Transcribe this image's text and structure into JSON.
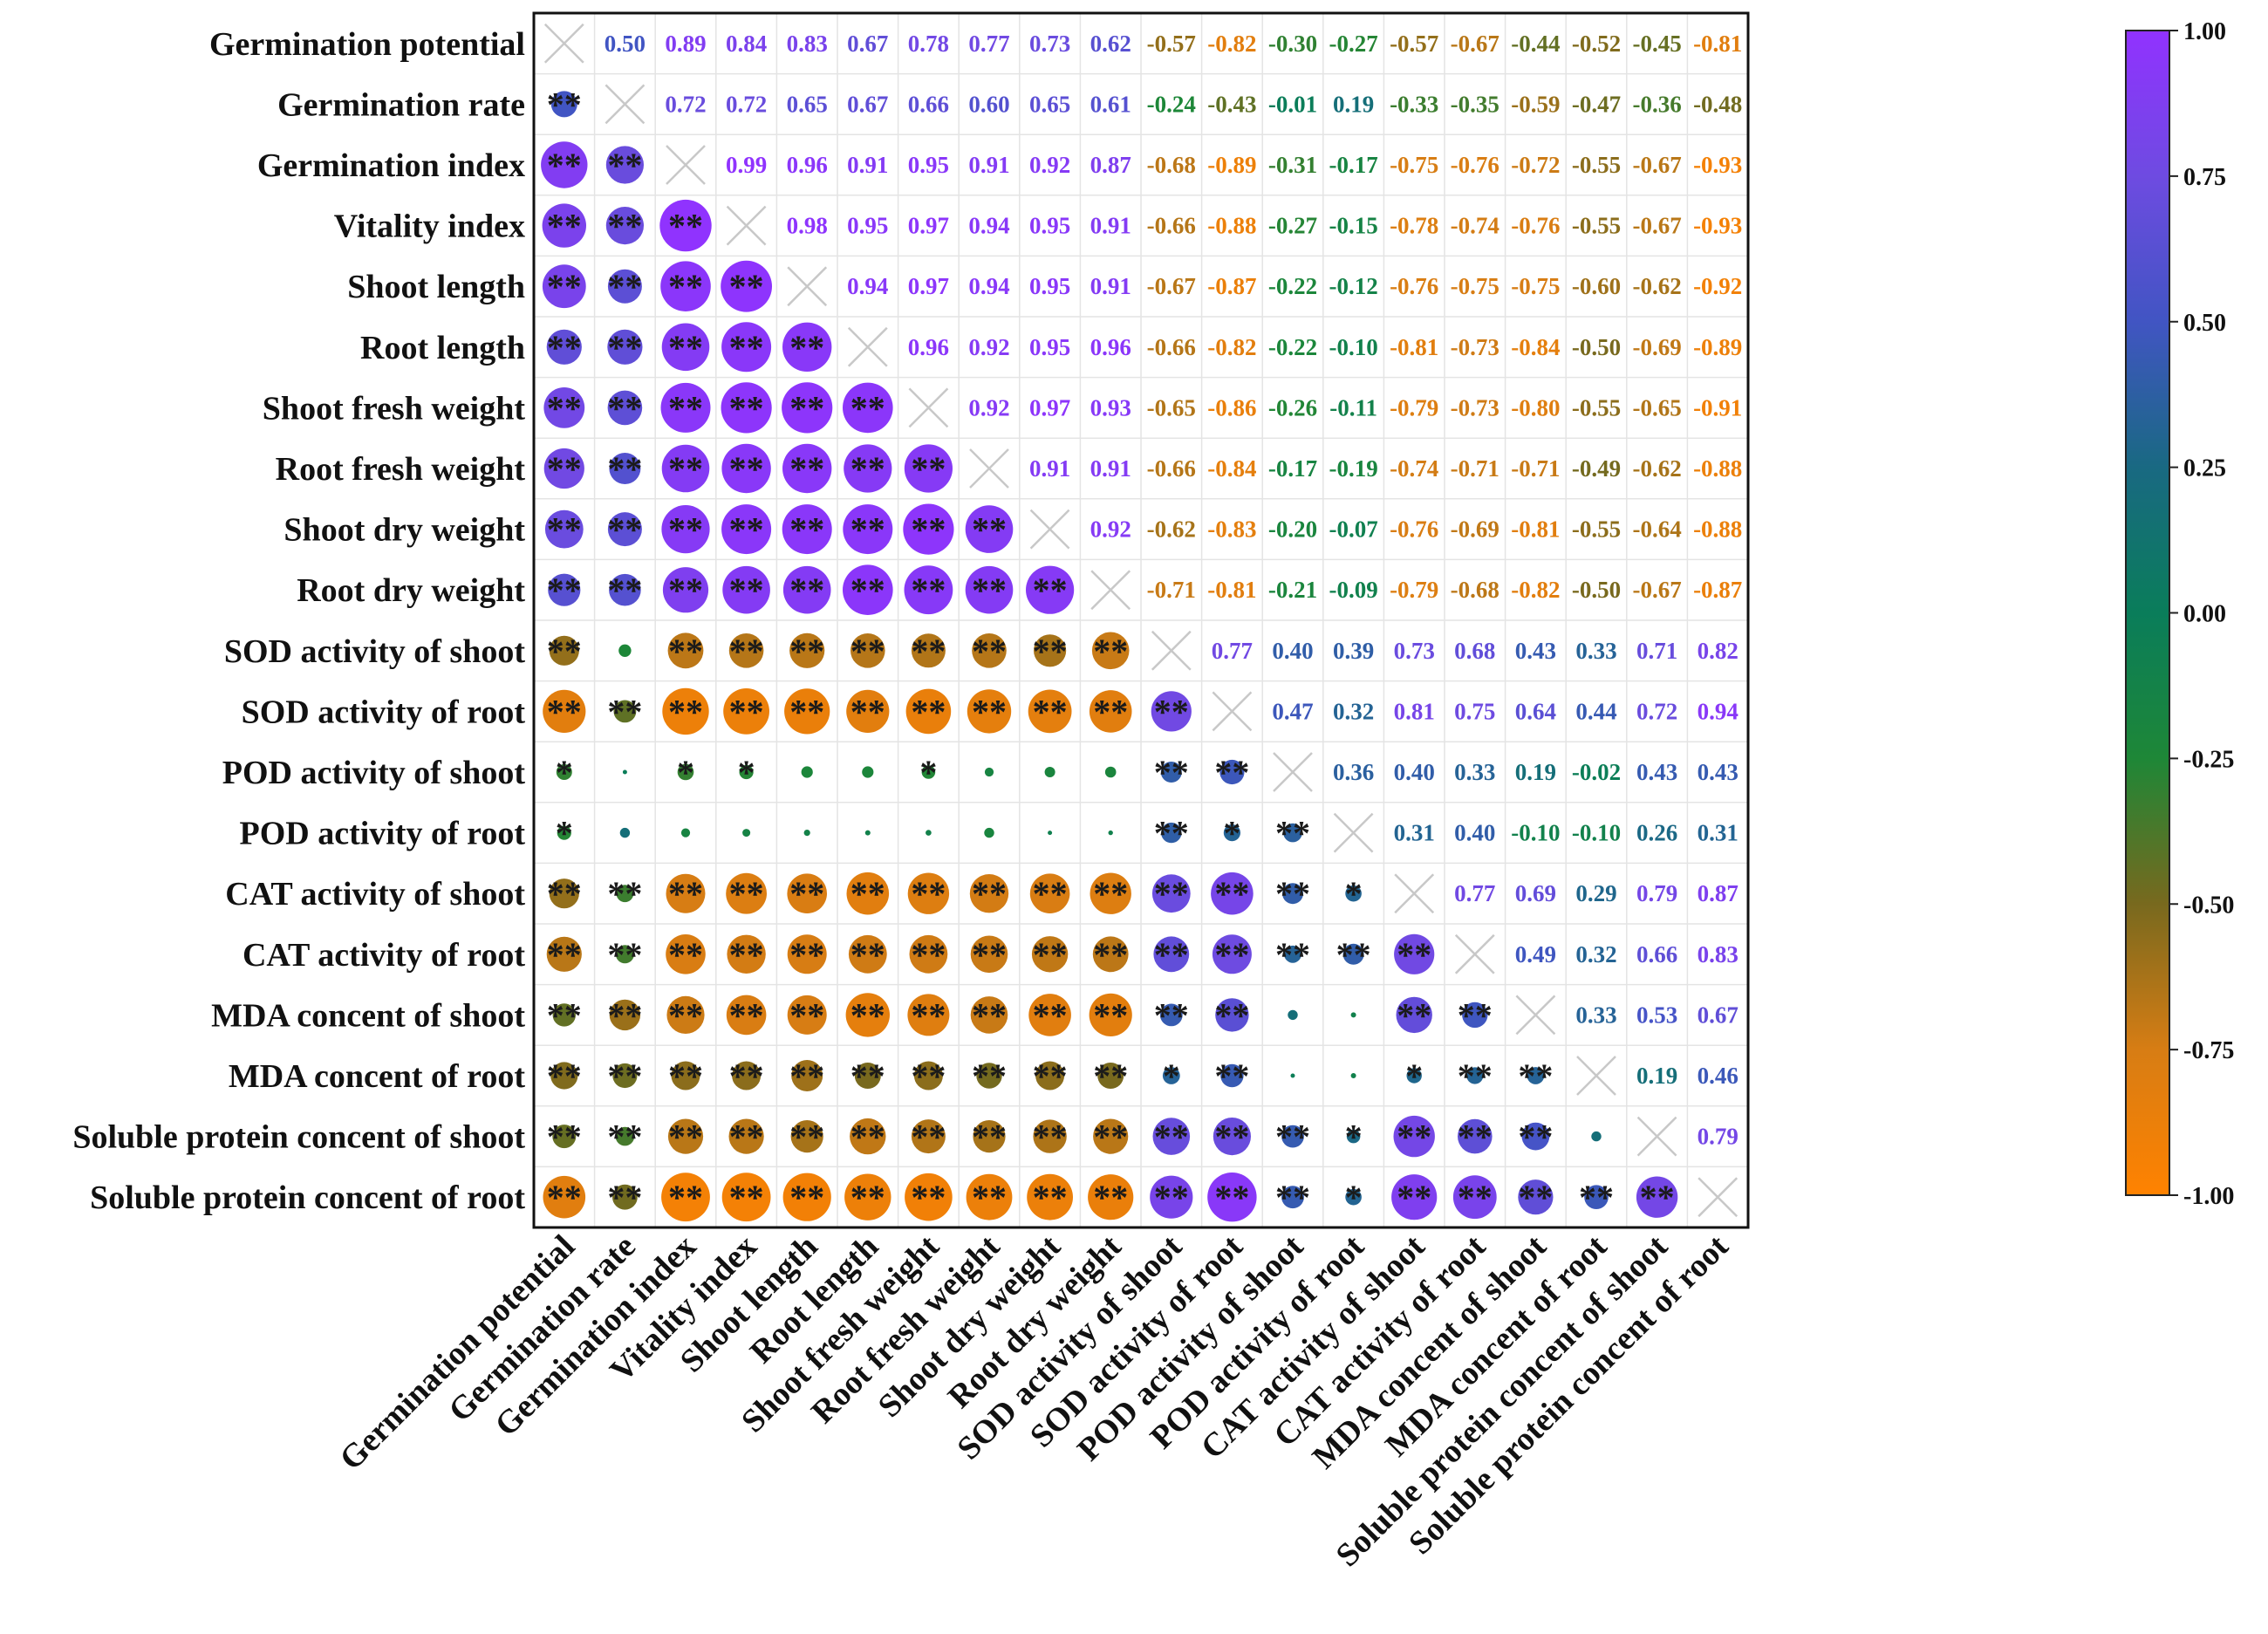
{
  "chart_data": {
    "type": "heatmap",
    "subtype": "correlation-matrix",
    "title": "",
    "variables": [
      "Germination potential",
      "Germination rate",
      "Germination index",
      "Vitality index",
      "Shoot length",
      "Root length",
      "Shoot fresh weight",
      "Root fresh weight",
      "Shoot dry weight",
      "Root dry weight",
      "SOD activity of shoot",
      "SOD activity of root",
      "POD activity of shoot",
      "POD activity of root",
      "CAT activity of shoot",
      "CAT activity of root",
      "MDA concent of shoot",
      "MDA concent of root",
      "Soluble protein concent of shoot",
      "Soluble protein concent of root"
    ],
    "upper_triangle": [
      [
        "0.50",
        "0.89",
        "0.84",
        "0.83",
        "0.67",
        "0.78",
        "0.77",
        "0.73",
        "0.62",
        "-0.57",
        "-0.82",
        "-0.30",
        "-0.27",
        "-0.57",
        "-0.67",
        "-0.44",
        "-0.52",
        "-0.45",
        "-0.81"
      ],
      [
        "0.72",
        "0.72",
        "0.65",
        "0.67",
        "0.66",
        "0.60",
        "0.65",
        "0.61",
        "-0.24",
        "-0.43",
        "-0.01",
        "0.19",
        "-0.33",
        "-0.35",
        "-0.59",
        "-0.47",
        "-0.36",
        "-0.48"
      ],
      [
        "0.99",
        "0.96",
        "0.91",
        "0.95",
        "0.91",
        "0.92",
        "0.87",
        "-0.68",
        "-0.89",
        "-0.31",
        "-0.17",
        "-0.75",
        "-0.76",
        "-0.72",
        "-0.55",
        "-0.67",
        "-0.93"
      ],
      [
        "0.98",
        "0.95",
        "0.97",
        "0.94",
        "0.95",
        "0.91",
        "-0.66",
        "-0.88",
        "-0.27",
        "-0.15",
        "-0.78",
        "-0.74",
        "-0.76",
        "-0.55",
        "-0.67",
        "-0.93"
      ],
      [
        "0.94",
        "0.97",
        "0.94",
        "0.95",
        "0.91",
        "-0.67",
        "-0.87",
        "-0.22",
        "-0.12",
        "-0.76",
        "-0.75",
        "-0.75",
        "-0.60",
        "-0.62",
        "-0.92"
      ],
      [
        "0.96",
        "0.92",
        "0.95",
        "0.96",
        "-0.66",
        "-0.82",
        "-0.22",
        "-0.10",
        "-0.81",
        "-0.73",
        "-0.84",
        "-0.50",
        "-0.69",
        "-0.89"
      ],
      [
        "0.92",
        "0.97",
        "0.93",
        "-0.65",
        "-0.86",
        "-0.26",
        "-0.11",
        "-0.79",
        "-0.73",
        "-0.80",
        "-0.55",
        "-0.65",
        "-0.91"
      ],
      [
        "0.91",
        "0.91",
        "-0.66",
        "-0.84",
        "-0.17",
        "-0.19",
        "-0.74",
        "-0.71",
        "-0.71",
        "-0.49",
        "-0.62",
        "-0.88"
      ],
      [
        "0.92",
        "-0.62",
        "-0.83",
        "-0.20",
        "-0.07",
        "-0.76",
        "-0.69",
        "-0.81",
        "-0.55",
        "-0.64",
        "-0.88"
      ],
      [
        "-0.71",
        "-0.81",
        "-0.21",
        "-0.09",
        "-0.79",
        "-0.68",
        "-0.82",
        "-0.50",
        "-0.67",
        "-0.87"
      ],
      [
        "0.77",
        "0.40",
        "0.39",
        "0.73",
        "0.68",
        "0.43",
        "0.33",
        "0.71",
        "0.82"
      ],
      [
        "0.47",
        "0.32",
        "0.81",
        "0.75",
        "0.64",
        "0.44",
        "0.72",
        "0.94"
      ],
      [
        "0.36",
        "0.40",
        "0.33",
        "0.19",
        "-0.02",
        "0.43",
        "0.43"
      ],
      [
        "0.31",
        "0.40",
        "-0.10",
        "-0.10",
        "0.26",
        "0.31"
      ],
      [
        "0.77",
        "0.69",
        "0.29",
        "0.79",
        "0.87"
      ],
      [
        "0.49",
        "0.32",
        "0.66",
        "0.83"
      ],
      [
        "0.33",
        "0.53",
        "0.67"
      ],
      [
        "0.19",
        "0.46"
      ],
      [
        "0.79"
      ]
    ],
    "significance_lower": [
      [
        "**"
      ],
      [
        "**",
        "**"
      ],
      [
        "**",
        "**",
        "**"
      ],
      [
        "**",
        "**",
        "**",
        "**"
      ],
      [
        "**",
        "**",
        "**",
        "**",
        "**"
      ],
      [
        "**",
        "**",
        "**",
        "**",
        "**",
        "**"
      ],
      [
        "**",
        "**",
        "**",
        "**",
        "**",
        "**",
        "**"
      ],
      [
        "**",
        "**",
        "**",
        "**",
        "**",
        "**",
        "**",
        "**"
      ],
      [
        "**",
        "**",
        "**",
        "**",
        "**",
        "**",
        "**",
        "**",
        "**"
      ],
      [
        "**",
        "",
        "**",
        "**",
        "**",
        "**",
        "**",
        "**",
        "**",
        "**"
      ],
      [
        "**",
        "**",
        "**",
        "**",
        "**",
        "**",
        "**",
        "**",
        "**",
        "**",
        "**"
      ],
      [
        "*",
        "",
        "*",
        "*",
        "",
        "",
        "*",
        "",
        "",
        "",
        "**",
        "**"
      ],
      [
        "*",
        "",
        "",
        "",
        "",
        "",
        "",
        "",
        "",
        "",
        "**",
        "*",
        "**"
      ],
      [
        "**",
        "**",
        "**",
        "**",
        "**",
        "**",
        "**",
        "**",
        "**",
        "**",
        "**",
        "**",
        "**",
        "*"
      ],
      [
        "**",
        "**",
        "**",
        "**",
        "**",
        "**",
        "**",
        "**",
        "**",
        "**",
        "**",
        "**",
        "**",
        "**",
        "**"
      ],
      [
        "**",
        "**",
        "**",
        "**",
        "**",
        "**",
        "**",
        "**",
        "**",
        "**",
        "**",
        "**",
        "",
        "",
        "**",
        "**"
      ],
      [
        "**",
        "**",
        "**",
        "**",
        "**",
        "**",
        "**",
        "**",
        "**",
        "**",
        "*",
        "**",
        "",
        "",
        "*",
        "**",
        "**"
      ],
      [
        "**",
        "**",
        "**",
        "**",
        "**",
        "**",
        "**",
        "**",
        "**",
        "**",
        "**",
        "**",
        "**",
        "*",
        "**",
        "**",
        "**",
        ""
      ],
      [
        "**",
        "**",
        "**",
        "**",
        "**",
        "**",
        "**",
        "**",
        "**",
        "**",
        "**",
        "**",
        "**",
        "*",
        "**",
        "**",
        "**",
        "**",
        "**"
      ]
    ],
    "colorbar": {
      "range": [
        -1.0,
        1.0
      ],
      "ticks": [
        "1.00",
        "0.75",
        "0.50",
        "0.25",
        "0.00",
        "-0.25",
        "-0.50",
        "-0.75",
        "-1.00"
      ],
      "colors": [
        "#8c36ff",
        "#3a4fd0",
        "#0a7b56",
        "#f07f0a"
      ]
    },
    "legend": "right"
  }
}
